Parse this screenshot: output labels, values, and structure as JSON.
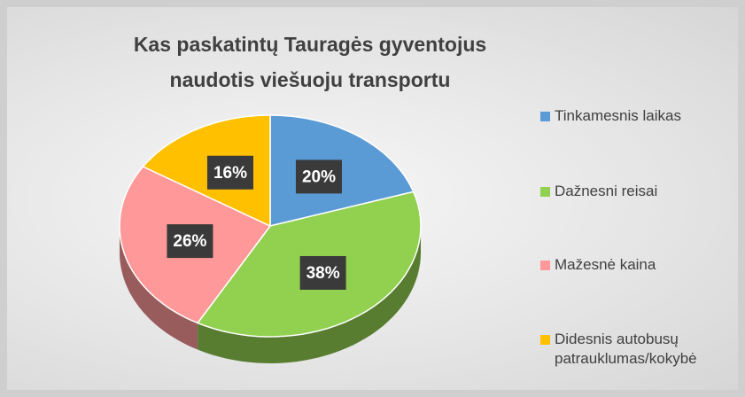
{
  "chart_data": {
    "type": "pie",
    "title": "Kas paskatintų Tauragės gyventojus naudotis viešuoju transportu",
    "categories": [
      "Tinkamesnis laikas",
      "Dažnesni reisai",
      "Mažesnė kaina",
      "Didesnis autobusų patrauklumas/kokybė"
    ],
    "values": [
      20,
      38,
      26,
      16
    ],
    "value_labels": [
      "20%",
      "38%",
      "26%",
      "16%"
    ],
    "colors": [
      "#5b9bd5",
      "#92d050",
      "#ff9999",
      "#ffc000"
    ],
    "legend": "right"
  }
}
